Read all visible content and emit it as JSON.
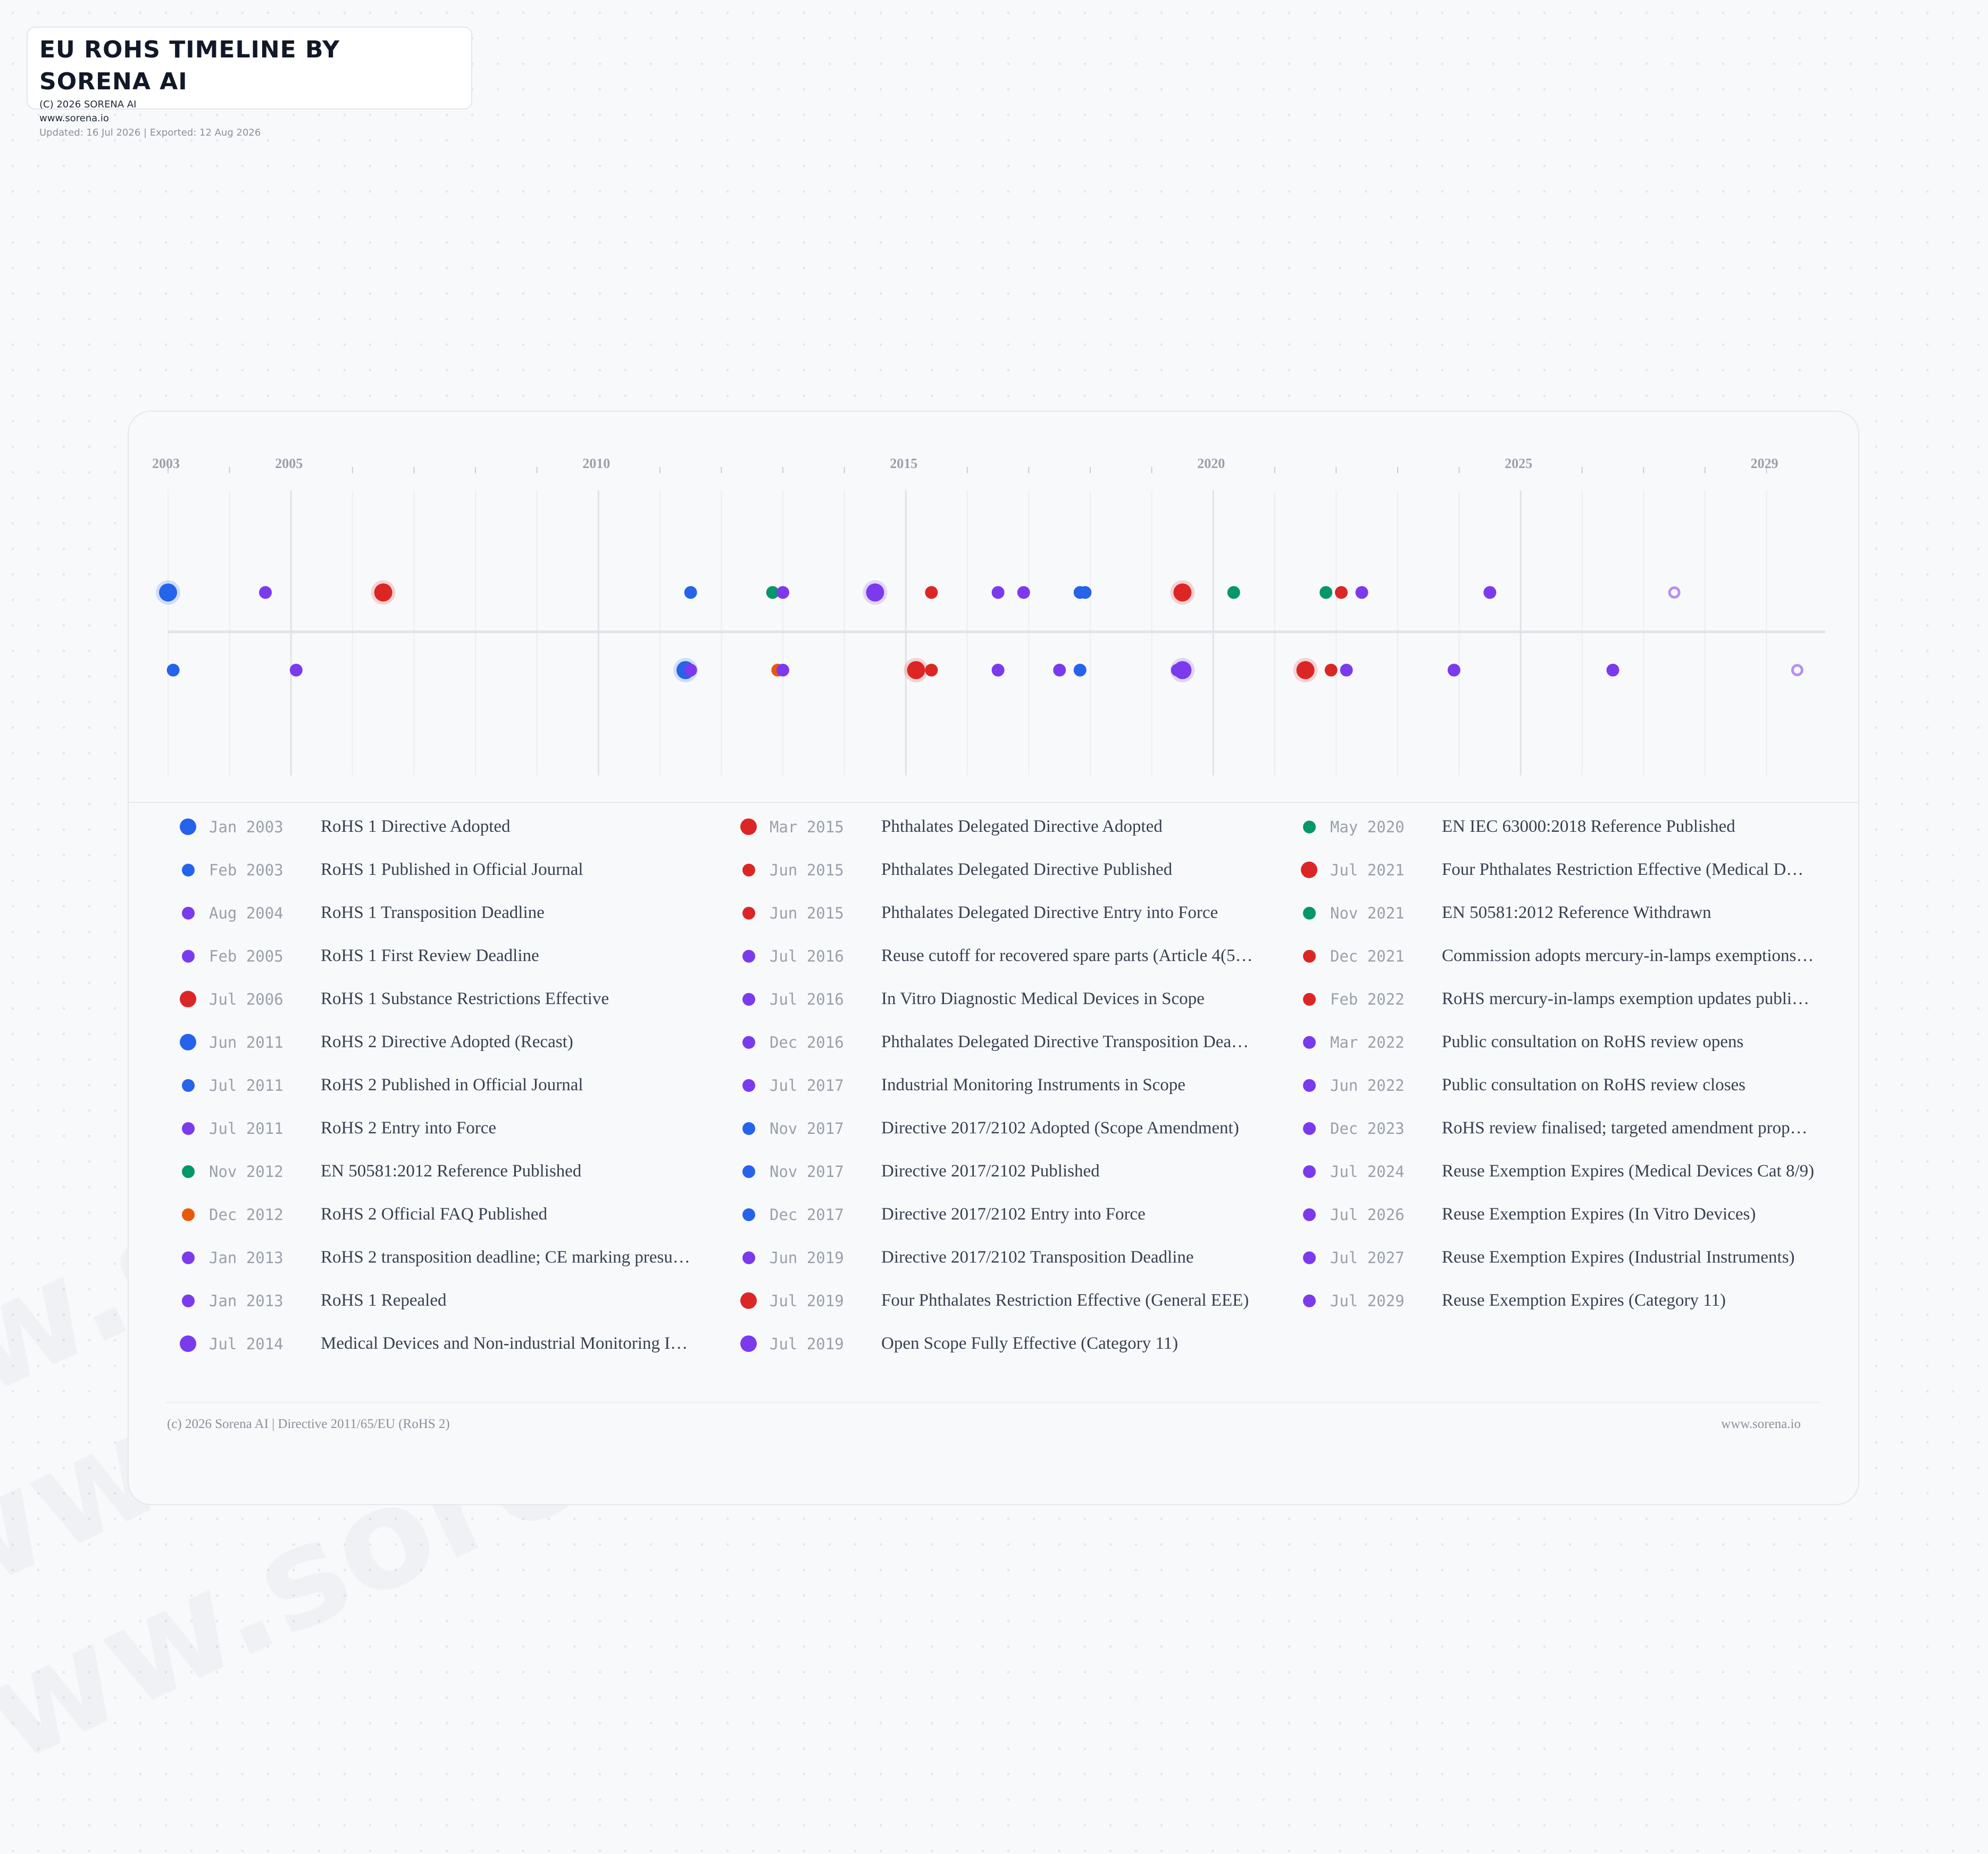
{
  "watermark_text": "www.sorena.io",
  "header": {
    "title": "EU ROHS TIMELINE BY SORENA AI",
    "copyright": "(C) 2026 SORENA AI",
    "website": "www.sorena.io",
    "meta": "Updated: 16 Jul 2026  |  Exported: 12 Aug 2026"
  },
  "footer": {
    "left": "(c) 2026 Sorena AI | Directive 2011/65/EU (RoHS 2)",
    "right": "www.sorena.io"
  },
  "colors": {
    "blue": "#2563eb",
    "purple": "#7c3aed",
    "red": "#dc2626",
    "green": "#059669",
    "orange": "#ea580c"
  },
  "chart_data": {
    "type": "timeline",
    "x_range": [
      "2003-01",
      "2029-12"
    ],
    "tick_labels": [
      "2003",
      "2005",
      "2010",
      "2015",
      "2020",
      "2025",
      "2029"
    ],
    "events": [
      {
        "date": "Jan 2003",
        "title": "RoHS 1 Directive Adopted",
        "color": "blue",
        "major": true
      },
      {
        "date": "Feb 2003",
        "title": "RoHS 1 Published in Official Journal",
        "color": "blue",
        "major": false
      },
      {
        "date": "Aug 2004",
        "title": "RoHS 1 Transposition Deadline",
        "color": "purple",
        "major": false
      },
      {
        "date": "Feb 2005",
        "title": "RoHS 1 First Review Deadline",
        "color": "purple",
        "major": false
      },
      {
        "date": "Jul 2006",
        "title": "RoHS 1 Substance Restrictions Effective",
        "color": "red",
        "major": true
      },
      {
        "date": "Jun 2011",
        "title": "RoHS 2 Directive Adopted (Recast)",
        "color": "blue",
        "major": true
      },
      {
        "date": "Jul 2011",
        "title": "RoHS 2 Published in Official Journal",
        "color": "blue",
        "major": false
      },
      {
        "date": "Jul 2011",
        "title": "RoHS 2 Entry into Force",
        "color": "purple",
        "major": false
      },
      {
        "date": "Nov 2012",
        "title": "EN 50581:2012 Reference Published",
        "color": "green",
        "major": false
      },
      {
        "date": "Dec 2012",
        "title": "RoHS 2 Official FAQ Published",
        "color": "orange",
        "major": false
      },
      {
        "date": "Jan 2013",
        "title": "RoHS 2 transposition deadline; CE marking presu…",
        "color": "purple",
        "major": false
      },
      {
        "date": "Jan 2013",
        "title": "RoHS 1 Repealed",
        "color": "purple",
        "major": false
      },
      {
        "date": "Jul 2014",
        "title": "Medical Devices and Non-industrial Monitoring I…",
        "color": "purple",
        "major": true
      },
      {
        "date": "Mar 2015",
        "title": "Phthalates Delegated Directive Adopted",
        "color": "red",
        "major": true
      },
      {
        "date": "Jun 2015",
        "title": "Phthalates Delegated Directive Published",
        "color": "red",
        "major": false
      },
      {
        "date": "Jun 2015",
        "title": "Phthalates Delegated Directive Entry into Force",
        "color": "red",
        "major": false
      },
      {
        "date": "Jul 2016",
        "title": "Reuse cutoff for recovered spare parts (Article 4(5…",
        "color": "purple",
        "major": false
      },
      {
        "date": "Jul 2016",
        "title": "In Vitro Diagnostic Medical Devices in Scope",
        "color": "purple",
        "major": false
      },
      {
        "date": "Dec 2016",
        "title": "Phthalates Delegated Directive Transposition Dea…",
        "color": "purple",
        "major": false
      },
      {
        "date": "Jul 2017",
        "title": "Industrial Monitoring Instruments in Scope",
        "color": "purple",
        "major": false
      },
      {
        "date": "Nov 2017",
        "title": "Directive 2017/2102 Adopted (Scope Amendment)",
        "color": "blue",
        "major": false
      },
      {
        "date": "Nov 2017",
        "title": "Directive 2017/2102 Published",
        "color": "blue",
        "major": false
      },
      {
        "date": "Dec 2017",
        "title": "Directive 2017/2102 Entry into Force",
        "color": "blue",
        "major": false
      },
      {
        "date": "Jun 2019",
        "title": "Directive 2017/2102 Transposition Deadline",
        "color": "purple",
        "major": false
      },
      {
        "date": "Jul 2019",
        "title": "Four Phthalates Restriction Effective (General EEE)",
        "color": "red",
        "major": true
      },
      {
        "date": "Jul 2019",
        "title": "Open Scope Fully Effective (Category 11)",
        "color": "purple",
        "major": true
      },
      {
        "date": "May 2020",
        "title": "EN IEC 63000:2018 Reference Published",
        "color": "green",
        "major": false
      },
      {
        "date": "Jul 2021",
        "title": "Four Phthalates Restriction Effective (Medical D…",
        "color": "red",
        "major": true
      },
      {
        "date": "Nov 2021",
        "title": "EN 50581:2012 Reference Withdrawn",
        "color": "green",
        "major": false
      },
      {
        "date": "Dec 2021",
        "title": "Commission adopts mercury-in-lamps exemptions…",
        "color": "red",
        "major": false
      },
      {
        "date": "Feb 2022",
        "title": "RoHS mercury-in-lamps exemption updates publi…",
        "color": "red",
        "major": false
      },
      {
        "date": "Mar 2022",
        "title": "Public consultation on RoHS review opens",
        "color": "purple",
        "major": false
      },
      {
        "date": "Jun 2022",
        "title": "Public consultation on RoHS review closes",
        "color": "purple",
        "major": false
      },
      {
        "date": "Dec 2023",
        "title": "RoHS review finalised; targeted amendment prop…",
        "color": "purple",
        "major": false
      },
      {
        "date": "Jul 2024",
        "title": "Reuse Exemption Expires (Medical Devices Cat 8/9)",
        "color": "purple",
        "major": false
      },
      {
        "date": "Jul 2026",
        "title": "Reuse Exemption Expires (In Vitro Devices)",
        "color": "purple",
        "major": false
      },
      {
        "date": "Jul 2027",
        "title": "Reuse Exemption Expires (Industrial Instruments)",
        "color": "purple",
        "major": false
      },
      {
        "date": "Jul 2029",
        "title": "Reuse Exemption Expires (Category 11)",
        "color": "purple",
        "major": false
      }
    ]
  }
}
